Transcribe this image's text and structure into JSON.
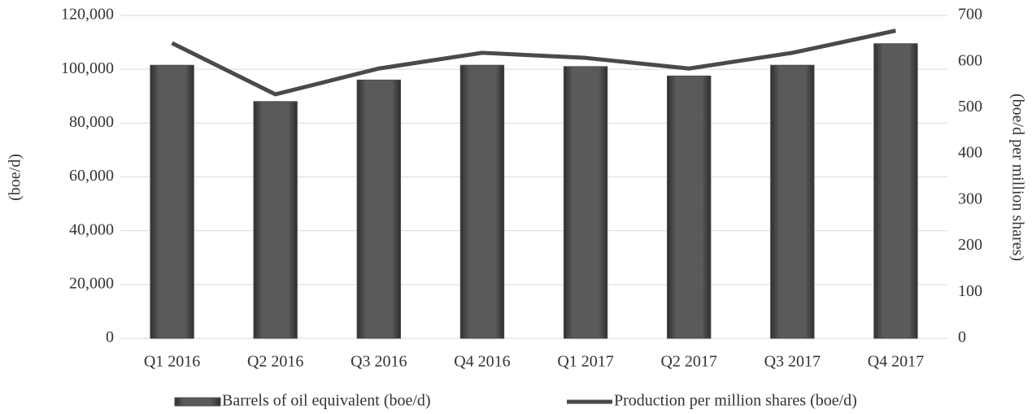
{
  "chart_data": {
    "type": "bar_line",
    "categories": [
      "Q1 2016",
      "Q2 2016",
      "Q3 2016",
      "Q4 2016",
      "Q1 2017",
      "Q2 2017",
      "Q3 2017",
      "Q4 2017"
    ],
    "series": [
      {
        "name": "Barrels of oil equivalent (boe/d)",
        "type": "bar",
        "color": "#4d4d4d",
        "values": [
          101500,
          88000,
          96000,
          101500,
          101000,
          97500,
          101500,
          109500
        ]
      },
      {
        "name": "Production per million shares (boe/d)",
        "type": "line",
        "axis": "y2",
        "color": "#4a4a4a",
        "values": [
          640,
          529,
          585,
          619,
          608,
          585,
          619,
          667
        ]
      }
    ],
    "ylabel": "(boe/d)",
    "y2label": "(boe/d per million shares)",
    "ylim": [
      0,
      120000
    ],
    "yticks": [
      0,
      {
        "value": 20000,
        "label": "20,000"
      },
      {
        "value": 40000,
        "label": "40,000"
      },
      {
        "value": 60000,
        "label": "60,000"
      },
      {
        "value": 80000,
        "label": "80,000"
      },
      {
        "value": 100000,
        "label": "100,000"
      },
      {
        "value": 120000,
        "label": "120,000"
      }
    ],
    "y2lim": [
      0,
      700
    ],
    "y2ticks": [
      0,
      100,
      200,
      300,
      400,
      500,
      600,
      700
    ],
    "grid": true,
    "legend": "bottom"
  }
}
